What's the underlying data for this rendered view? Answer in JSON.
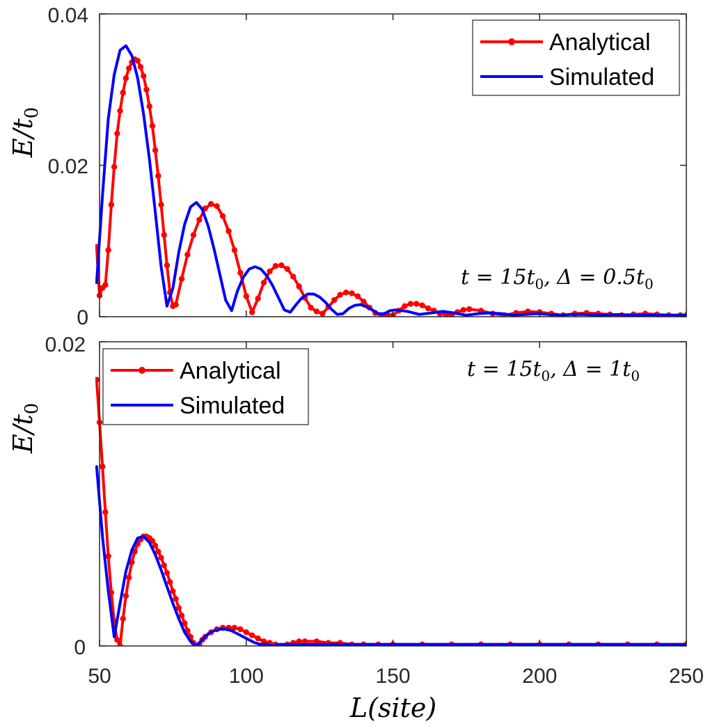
{
  "chart_data": {
    "xlabel": "L(site)",
    "x_ticks": [
      50,
      100,
      150,
      200,
      250
    ],
    "xlim": [
      50,
      250
    ],
    "colors": {
      "analytical": "#ff0000",
      "simulated": "#0000ff",
      "axis": "#262626"
    },
    "panels": [
      {
        "type": "line",
        "ylabel": "E/t0",
        "ylabel_main": "E/t",
        "ylabel_sub": "0",
        "ylim": [
          0,
          0.04
        ],
        "y_ticks": [
          0,
          0.02,
          0.04
        ],
        "y_tick_labels": [
          "0",
          "0.02",
          "0.04"
        ],
        "legend_position": "top-right",
        "annotation": "t = 15t0, Δ = 0.5t0",
        "annotation_parts": [
          "t = 15t",
          "0",
          ", Δ = 0.5t",
          "0"
        ],
        "series": [
          {
            "name": "Analytical",
            "style": "line-with-markers",
            "x": [
              49,
              50,
              51,
              52,
              53,
              54,
              55,
              56,
              57,
              58,
              59,
              60,
              61,
              62,
              63,
              64,
              65,
              66,
              67,
              68,
              69,
              70,
              71,
              72,
              73,
              74,
              75,
              76,
              78,
              80,
              82,
              84,
              86,
              88,
              90,
              92,
              94,
              96,
              98,
              100,
              102,
              104,
              106,
              108,
              110,
              112,
              114,
              116,
              118,
              120,
              122,
              124,
              126,
              128,
              130,
              132,
              134,
              136,
              138,
              140,
              142,
              144,
              146,
              148,
              150,
              152,
              154,
              156,
              158,
              160,
              162,
              164,
              166,
              168,
              170,
              172,
              174,
              176,
              180,
              184,
              188,
              192,
              196,
              200,
              204,
              208,
              212,
              216,
              220,
              224,
              228,
              232,
              236,
              240,
              244,
              248,
              250
            ],
            "values": [
              0.0092,
              0.0028,
              0.0038,
              0.0042,
              0.0088,
              0.0148,
              0.0198,
              0.0242,
              0.0272,
              0.0296,
              0.0315,
              0.0328,
              0.0336,
              0.034,
              0.0338,
              0.033,
              0.0318,
              0.03,
              0.0278,
              0.0252,
              0.022,
              0.0186,
              0.0148,
              0.0108,
              0.0068,
              0.0032,
              0.0014,
              0.0016,
              0.005,
              0.0082,
              0.0108,
              0.0128,
              0.0143,
              0.0149,
              0.0146,
              0.0133,
              0.0113,
              0.0088,
              0.0058,
              0.0027,
              0.0006,
              0.0024,
              0.0045,
              0.006,
              0.0067,
              0.0068,
              0.0063,
              0.0053,
              0.004,
              0.0025,
              0.0012,
              0.0007,
              0.0004,
              0.0013,
              0.0022,
              0.0029,
              0.0032,
              0.0031,
              0.0027,
              0.002,
              0.0012,
              0.0005,
              0.0002,
              0.0003,
              0.0002,
              0.0008,
              0.0014,
              0.0017,
              0.0017,
              0.0015,
              0.0011,
              0.0008,
              0.0004,
              0.0003,
              0.0002,
              0.0006,
              0.0009,
              0.001,
              0.0008,
              0.0004,
              0.0002,
              0.0005,
              0.0007,
              0.0006,
              0.0004,
              0.0002,
              0.0004,
              0.0005,
              0.0004,
              0.0003,
              0.0002,
              0.0003,
              0.0004,
              0.0003,
              0.0002,
              0.0002,
              0.0002
            ]
          },
          {
            "name": "Simulated",
            "style": "line",
            "x": [
              49,
              51,
              53,
              55,
              57,
              59,
              61,
              63,
              65,
              67,
              69,
              71,
              73,
              75,
              77,
              79,
              81,
              83,
              85,
              87,
              89,
              91,
              93,
              95,
              97,
              99,
              101,
              103,
              105,
              107,
              109,
              111,
              113,
              115,
              117,
              119,
              121,
              123,
              125,
              127,
              129,
              131,
              133,
              135,
              137,
              139,
              141,
              143,
              145,
              147,
              149,
              151,
              155,
              159,
              163,
              167,
              171,
              175,
              179,
              183,
              187,
              191,
              195,
              199,
              203,
              207,
              211,
              215,
              219,
              223,
              227,
              231,
              235,
              239,
              243,
              247,
              250
            ],
            "values": [
              0.0045,
              0.016,
              0.0262,
              0.032,
              0.0352,
              0.0358,
              0.0345,
              0.0315,
              0.0268,
              0.0208,
              0.0138,
              0.0066,
              0.0014,
              0.0038,
              0.0085,
              0.0122,
              0.0145,
              0.0151,
              0.0142,
              0.012,
              0.009,
              0.0056,
              0.0022,
              0.0008,
              0.0034,
              0.0052,
              0.0063,
              0.0066,
              0.0063,
              0.0054,
              0.0041,
              0.0025,
              0.0009,
              0.0006,
              0.0016,
              0.0025,
              0.003,
              0.003,
              0.0026,
              0.0019,
              0.001,
              0.0003,
              0.0004,
              0.0011,
              0.0015,
              0.0016,
              0.0013,
              0.0009,
              0.0004,
              0.0004,
              0.0008,
              0.0009,
              0.0007,
              0.0003,
              0.0005,
              0.0007,
              0.0005,
              0.0002,
              0.0004,
              0.0005,
              0.0004,
              0.0002,
              0.0003,
              0.0004,
              0.0003,
              0.0002,
              0.0003,
              0.0003,
              0.0002,
              0.0002,
              0.0003,
              0.0002,
              0.0002,
              0.0002,
              0.0002,
              0.0002,
              0.0002
            ]
          }
        ]
      },
      {
        "type": "line",
        "ylabel": "E/t0",
        "ylabel_main": "E/t",
        "ylabel_sub": "0",
        "ylim": [
          0,
          0.02
        ],
        "y_ticks": [
          0,
          0.02
        ],
        "y_tick_labels": [
          "0",
          "0.02"
        ],
        "legend_position": "top-left",
        "annotation": "t = 15t0, Δ = 1t0",
        "annotation_parts": [
          "t = 15t",
          "0",
          ", Δ = 1t",
          "0"
        ],
        "series": [
          {
            "name": "Analytical",
            "style": "line-with-markers",
            "x": [
              49,
              50,
              51,
              52,
              53,
              54,
              55,
              56,
              57,
              58,
              59,
              60,
              61,
              62,
              63,
              64,
              65,
              66,
              67,
              68,
              69,
              70,
              71,
              72,
              73,
              74,
              75,
              76,
              77,
              78,
              79,
              80,
              81,
              82,
              83,
              84,
              85,
              86,
              88,
              90,
              92,
              94,
              96,
              98,
              100,
              102,
              104,
              106,
              108,
              110,
              112,
              114,
              116,
              118,
              120,
              124,
              128,
              132,
              136,
              140,
              145,
              150,
              160,
              170,
              180,
              190,
              200,
              210,
              220,
              230,
              240,
              250
            ],
            "values": [
              0.0175,
              0.0147,
              0.0118,
              0.0088,
              0.0059,
              0.0035,
              0.0016,
              0.0004,
              0.0,
              0.0018,
              0.0033,
              0.0045,
              0.0055,
              0.0062,
              0.0067,
              0.007,
              0.0072,
              0.0072,
              0.0071,
              0.0069,
              0.0066,
              0.0062,
              0.0058,
              0.0053,
              0.0048,
              0.0042,
              0.0036,
              0.0031,
              0.0025,
              0.002,
              0.0015,
              0.001,
              0.0006,
              0.0002,
              0.0,
              0.0001,
              0.0004,
              0.0006,
              0.0009,
              0.0011,
              0.0012,
              0.0012,
              0.0012,
              0.0011,
              0.0009,
              0.0007,
              0.0005,
              0.0003,
              0.0002,
              0.0001,
              0.0,
              0.0001,
              0.0002,
              0.0003,
              0.0003,
              0.0003,
              0.0002,
              0.0002,
              0.0001,
              0.0001,
              0.0001,
              0.0001,
              0.0001,
              0.0001,
              0.0001,
              0.0001,
              0.0001,
              0.0001,
              0.0001,
              0.0001,
              0.0001,
              0.0001
            ]
          },
          {
            "name": "Simulated",
            "style": "line",
            "x": [
              49,
              51,
              53,
              55,
              57,
              59,
              61,
              63,
              65,
              67,
              69,
              71,
              73,
              75,
              77,
              79,
              81,
              83,
              85,
              87,
              89,
              91,
              93,
              95,
              97,
              99,
              101,
              103,
              105,
              107,
              109,
              111,
              113,
              115,
              120,
              130,
              140,
              150,
              175,
              200,
              225,
              250
            ],
            "values": [
              0.0118,
              0.0072,
              0.0036,
              0.0006,
              0.0028,
              0.0049,
              0.0063,
              0.0071,
              0.0072,
              0.0068,
              0.006,
              0.005,
              0.0039,
              0.0028,
              0.0018,
              0.0009,
              0.0003,
              0.0,
              0.0004,
              0.0008,
              0.001,
              0.0011,
              0.0011,
              0.001,
              0.0008,
              0.0006,
              0.0004,
              0.0002,
              0.0001,
              0.0001,
              0.0,
              0.0001,
              0.0001,
              0.0001,
              0.0001,
              0.0001,
              0.0001,
              0.0001,
              0.0001,
              0.0001,
              0.0001,
              0.0001
            ]
          }
        ]
      }
    ]
  }
}
